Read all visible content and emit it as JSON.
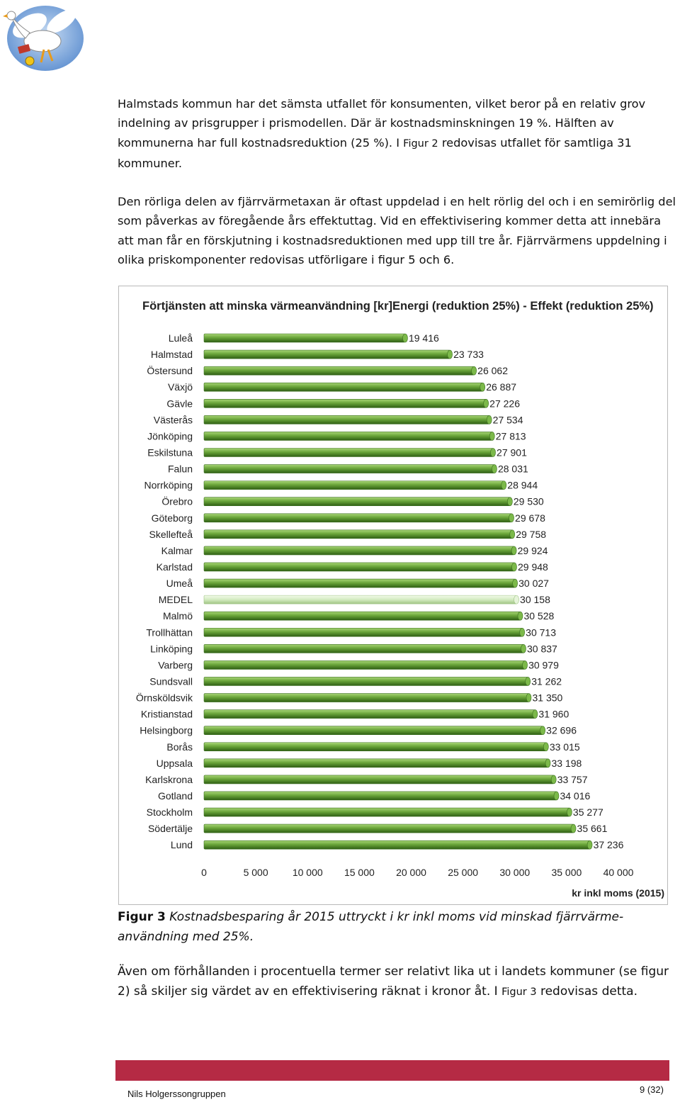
{
  "body_text": {
    "p1": {
      "before": "Halmstads kommun har det sämsta utfallet för konsumenten, vilket beror på en relativ grov indelning av prisgrupper i prismodellen. Där är kostnadsminskningen 19 %. Hälften av kommunerna har full kostnadsreduktion (25 %). I ",
      "ref": "Figur 2",
      "after": " redovisas utfallet för samtliga 31 kommuner."
    },
    "p2": "Den rörliga delen av fjärrvärmetaxan är oftast uppdelad i en helt rörlig del och i en semirörlig del som påverkas av föregående års effektuttag. Vid en effektivisering kommer detta att innebära att man får en förskjutning i kostnadsreduktionen med upp till tre år. Fjärrvärmens uppdelning i olika priskomponenter redovisas utförligare i figur 5 och 6.",
    "p3": {
      "before": "Även om förhållanden i procentuella termer ser relativt lika ut i landets kommuner (se figur 2) så skiljer sig värdet av en effektivisering räknat i kronor åt. I ",
      "ref": "Figur 3",
      "after": " redovisas detta."
    }
  },
  "caption": {
    "label": "Figur 3",
    "text": " Kostnadsbesparing år 2015 uttryckt i kr inkl moms vid minskad fjärrvärme-användning med 25%."
  },
  "footer": {
    "org": "Nils Holgerssongruppen",
    "page": "9 (32)"
  },
  "colors": {
    "bar": "#6aa53a",
    "bar_highlight": "#d3ebc0",
    "footer_bar": "#b52a44"
  },
  "icons": {
    "logo": "goose-logo-icon"
  },
  "chart_data": {
    "type": "bar",
    "orientation": "horizontal",
    "title": "Förtjänsten att minska värmeanvändning [kr]Energi (reduktion 25%) - Effekt (reduktion 25%)",
    "xlabel": "kr inkl moms (2015)",
    "ylabel": "",
    "xlim": [
      0,
      40000
    ],
    "xticks": [
      "0",
      "5 000",
      "10 000",
      "15 000",
      "20 000",
      "25 000",
      "30 000",
      "35 000",
      "40 000"
    ],
    "grid": false,
    "legend": "none",
    "highlight": "MEDEL",
    "categories": [
      "Luleå",
      "Halmstad",
      "Östersund",
      "Växjö",
      "Gävle",
      "Västerås",
      "Jönköping",
      "Eskilstuna",
      "Falun",
      "Norrköping",
      "Örebro",
      "Göteborg",
      "Skellefteå",
      "Kalmar",
      "Karlstad",
      "Umeå",
      "MEDEL",
      "Malmö",
      "Trollhättan",
      "Linköping",
      "Varberg",
      "Sundsvall",
      "Örnsköldsvik",
      "Kristianstad",
      "Helsingborg",
      "Borås",
      "Uppsala",
      "Karlskrona",
      "Gotland",
      "Stockholm",
      "Södertälje",
      "Lund"
    ],
    "values": [
      19416,
      23733,
      26062,
      26887,
      27226,
      27534,
      27813,
      27901,
      28031,
      28944,
      29530,
      29678,
      29758,
      29924,
      29948,
      30027,
      30158,
      30528,
      30713,
      30837,
      30979,
      31262,
      31350,
      31960,
      32696,
      33015,
      33198,
      33757,
      34016,
      35277,
      35661,
      37236
    ],
    "labels": [
      "19 416",
      "23 733",
      "26 062",
      "26 887",
      "27 226",
      "27 534",
      "27 813",
      "27 901",
      "28 031",
      "28 944",
      "29 530",
      "29 678",
      "29 758",
      "29 924",
      "29 948",
      "30 027",
      "30 158",
      "30 528",
      "30 713",
      "30 837",
      "30 979",
      "31 262",
      "31 350",
      "31 960",
      "32 696",
      "33 015",
      "33 198",
      "33 757",
      "34 016",
      "35 277",
      "35 661",
      "37 236"
    ]
  }
}
